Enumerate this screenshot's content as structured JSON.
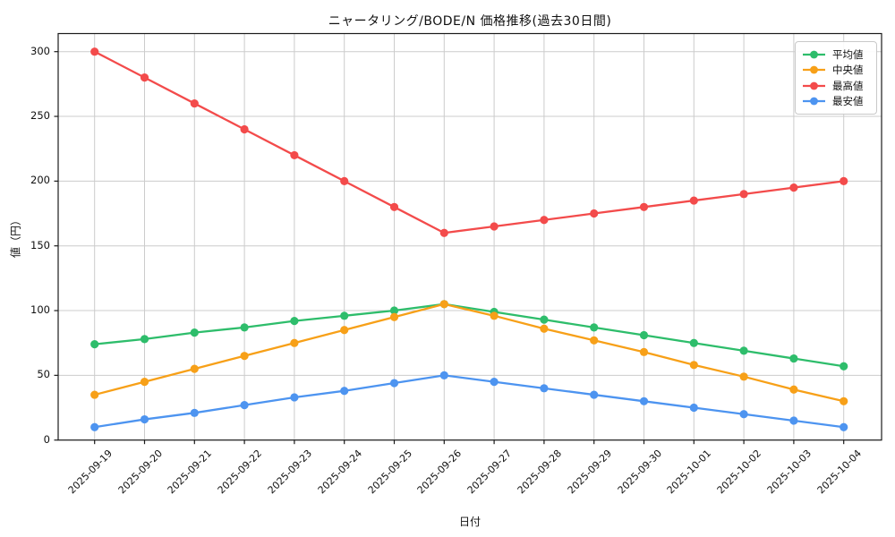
{
  "figure": {
    "title": "ニャータリング/BODE/N 価格推移(過去30日間)",
    "xlabel": "日付",
    "ylabel": "値（円）"
  },
  "colors": {
    "grid": "#cccccc",
    "axis": "#1a1a1a",
    "background": "#ffffff",
    "legend_border": "#c9c9c9"
  },
  "chart_data": {
    "type": "line",
    "title": "ニャータリング/BODE/N 価格推移(過去30日間)",
    "xlabel": "日付",
    "ylabel": "値（円）",
    "x": [
      "2025-09-19",
      "2025-09-20",
      "2025-09-21",
      "2025-09-22",
      "2025-09-23",
      "2025-09-24",
      "2025-09-25",
      "2025-09-26",
      "2025-09-27",
      "2025-09-28",
      "2025-09-29",
      "2025-09-30",
      "2025-10-01",
      "2025-10-02",
      "2025-10-03",
      "2025-10-04"
    ],
    "series": [
      {
        "key": "average",
        "name": "平均値",
        "color": "#2ebd6b",
        "values": [
          74,
          78,
          83,
          87,
          92,
          96,
          100,
          105,
          99,
          93,
          87,
          81,
          75,
          69,
          63,
          57
        ]
      },
      {
        "key": "median",
        "name": "中央値",
        "color": "#f7a018",
        "values": [
          35,
          45,
          55,
          65,
          75,
          85,
          95,
          105,
          96,
          86,
          77,
          68,
          58,
          49,
          39,
          30
        ]
      },
      {
        "key": "max",
        "name": "最高値",
        "color": "#f34b4b",
        "values": [
          300,
          280,
          260,
          240,
          220,
          200,
          180,
          160,
          165,
          170,
          175,
          180,
          185,
          190,
          195,
          200
        ]
      },
      {
        "key": "min",
        "name": "最安値",
        "color": "#4d94f0",
        "values": [
          10,
          16,
          21,
          27,
          33,
          38,
          44,
          50,
          45,
          40,
          35,
          30,
          25,
          20,
          15,
          10
        ]
      }
    ],
    "ylim": [
      0,
      314
    ],
    "yticks": [
      0,
      50,
      100,
      150,
      200,
      250,
      300
    ],
    "grid": true,
    "legend_position": "upper right"
  }
}
